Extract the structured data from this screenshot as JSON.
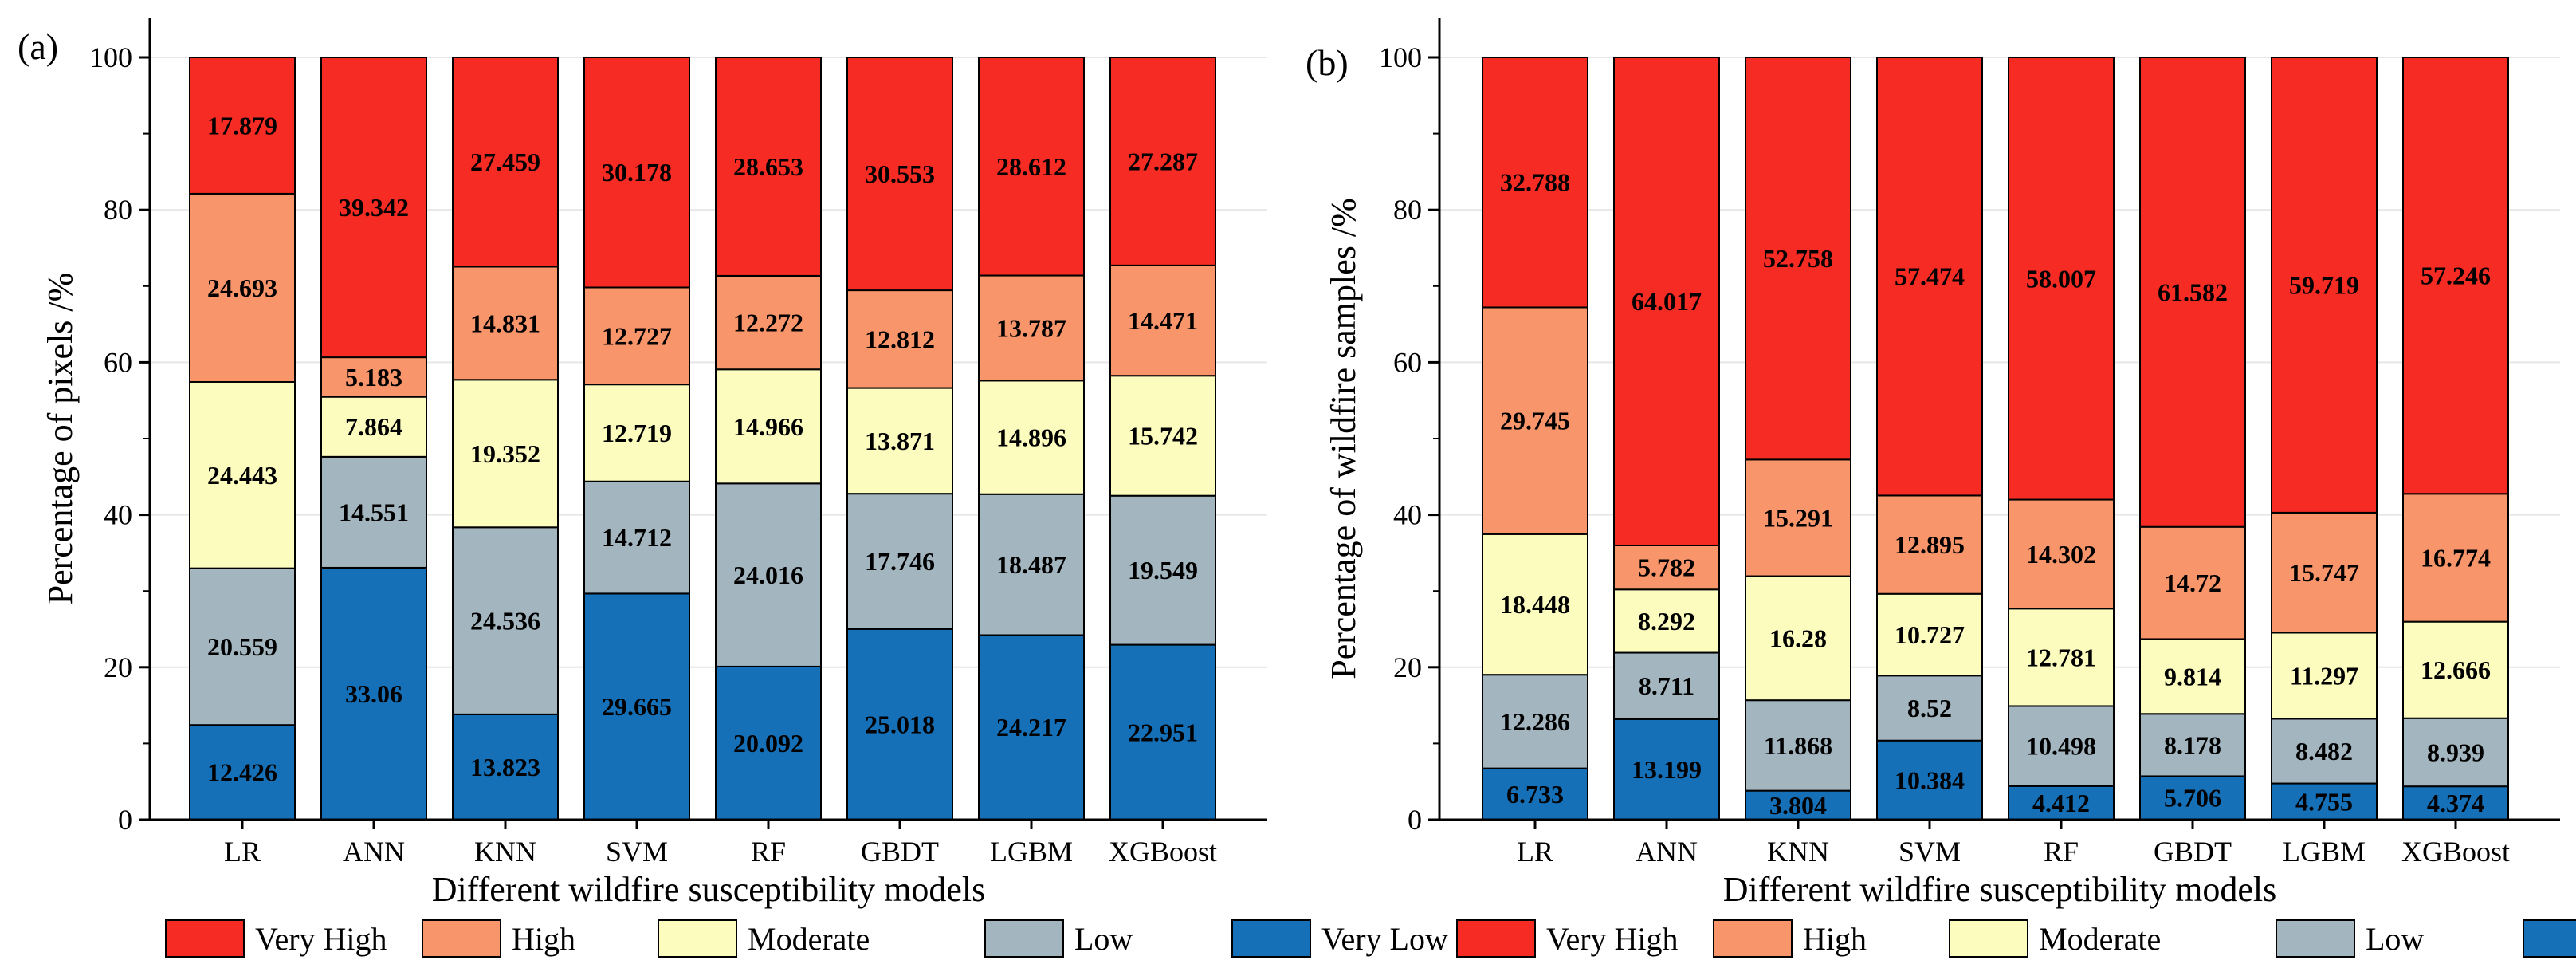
{
  "chart_data": [
    {
      "panel_label": "(a)",
      "type": "bar",
      "stacked": true,
      "title": "",
      "xlabel": "Different wildfire susceptibility models",
      "ylabel": "Percentage of pixels /%",
      "ylim": [
        0,
        100
      ],
      "yticks": [
        "0",
        "20",
        "40",
        "60",
        "80",
        "100"
      ],
      "grid": true,
      "legend_position": "bottom",
      "categories": [
        "LR",
        "ANN",
        "KNN",
        "SVM",
        "RF",
        "GBDT",
        "LGBM",
        "XGBoost"
      ],
      "series": [
        {
          "name": "Very Low",
          "color": "#1570b8",
          "values": [
            12.426,
            33.06,
            13.823,
            29.665,
            20.092,
            25.018,
            24.217,
            22.951
          ],
          "labels": [
            "12.426",
            "33.06",
            "13.823",
            "29.665",
            "20.092",
            "25.018",
            "24.217",
            "22.951"
          ]
        },
        {
          "name": "Low",
          "color": "#a3b5bf",
          "values": [
            20.559,
            14.551,
            24.536,
            14.712,
            24.016,
            17.746,
            18.487,
            19.549
          ],
          "labels": [
            "20.559",
            "14.551",
            "24.536",
            "14.712",
            "24.016",
            "17.746",
            "18.487",
            "19.549"
          ]
        },
        {
          "name": "Moderate",
          "color": "#fcfcbe",
          "values": [
            24.443,
            7.864,
            19.352,
            12.719,
            14.966,
            13.871,
            14.896,
            15.742
          ],
          "labels": [
            "24.443",
            "7.864",
            "19.352",
            "12.719",
            "14.966",
            "13.871",
            "14.896",
            "15.742"
          ]
        },
        {
          "name": "High",
          "color": "#f9956a",
          "values": [
            24.693,
            5.183,
            14.831,
            12.727,
            12.272,
            12.812,
            13.787,
            14.471
          ],
          "labels": [
            "24.693",
            "5.183",
            "14.831",
            "12.727",
            "12.272",
            "12.812",
            "13.787",
            "14.471"
          ]
        },
        {
          "name": "Very High",
          "color": "#f62b23",
          "values": [
            17.879,
            39.342,
            27.459,
            30.178,
            28.653,
            30.553,
            28.612,
            27.287
          ],
          "labels": [
            "17.879",
            "39.342",
            "27.459",
            "30.178",
            "28.653",
            "30.553",
            "28.612",
            "27.287"
          ]
        }
      ]
    },
    {
      "panel_label": "(b)",
      "type": "bar",
      "stacked": true,
      "title": "",
      "xlabel": "Different wildfire susceptibility models",
      "ylabel": "Percentage of wildfire samples /%",
      "ylim": [
        0,
        100
      ],
      "yticks": [
        "0",
        "20",
        "40",
        "60",
        "80",
        "100"
      ],
      "grid": true,
      "legend_position": "bottom",
      "categories": [
        "LR",
        "ANN",
        "KNN",
        "SVM",
        "RF",
        "GBDT",
        "LGBM",
        "XGBoost"
      ],
      "series": [
        {
          "name": "Very Low",
          "color": "#1570b8",
          "values": [
            6.733,
            13.199,
            3.804,
            10.384,
            4.412,
            5.706,
            4.755,
            4.374
          ],
          "labels": [
            "6.733",
            "13.199",
            "3.804",
            "10.384",
            "4.412",
            "5.706",
            "4.755",
            "4.374"
          ]
        },
        {
          "name": "Low",
          "color": "#a3b5bf",
          "values": [
            12.286,
            8.711,
            11.868,
            8.52,
            10.498,
            8.178,
            8.482,
            8.939
          ],
          "labels": [
            "12.286",
            "8.711",
            "11.868",
            "8.52",
            "10.498",
            "8.178",
            "8.482",
            "8.939"
          ]
        },
        {
          "name": "Moderate",
          "color": "#fcfcbe",
          "values": [
            18.448,
            8.292,
            16.28,
            10.727,
            12.781,
            9.814,
            11.297,
            12.666
          ],
          "labels": [
            "18.448",
            "8.292",
            "16.28",
            "10.727",
            "12.781",
            "9.814",
            "11.297",
            "12.666"
          ]
        },
        {
          "name": "High",
          "color": "#f9956a",
          "values": [
            29.745,
            5.782,
            15.291,
            12.895,
            14.302,
            14.72,
            15.747,
            16.774
          ],
          "labels": [
            "29.745",
            "5.782",
            "15.291",
            "12.895",
            "14.302",
            "14.72",
            "15.747",
            "16.774"
          ]
        },
        {
          "name": "Very High",
          "color": "#f62b23",
          "values": [
            32.788,
            64.017,
            52.758,
            57.474,
            58.007,
            61.582,
            59.719,
            57.246
          ],
          "labels": [
            "32.788",
            "64.017",
            "52.758",
            "57.474",
            "58.007",
            "61.582",
            "59.719",
            "57.246"
          ]
        }
      ]
    }
  ],
  "legend": {
    "items": [
      {
        "name": "Very High",
        "color": "#f62b23"
      },
      {
        "name": "High",
        "color": "#f9956a"
      },
      {
        "name": "Moderate",
        "color": "#fcfcbe"
      },
      {
        "name": "Low",
        "color": "#a3b5bf"
      },
      {
        "name": "Very Low",
        "color": "#1570b8"
      }
    ]
  }
}
